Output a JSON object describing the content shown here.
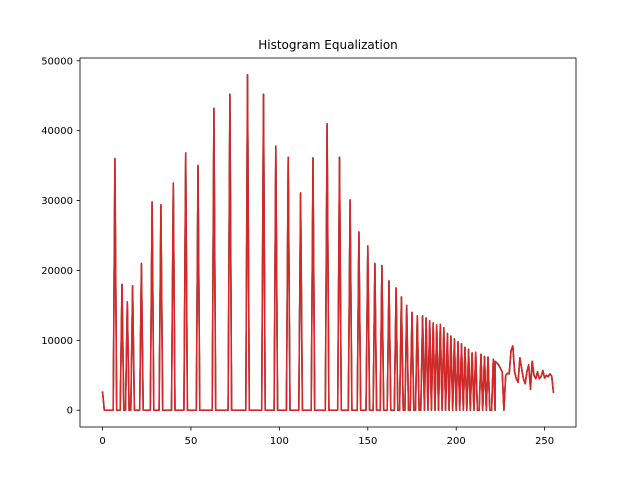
{
  "chart_data": {
    "type": "line",
    "title": "Histogram Equalization",
    "xlabel": "",
    "ylabel": "",
    "xlim": [
      -12.75,
      267.75
    ],
    "ylim": [
      -2400,
      50400
    ],
    "xticks": [
      0,
      50,
      100,
      150,
      200,
      250
    ],
    "yticks": [
      0,
      10000,
      20000,
      30000,
      40000,
      50000
    ],
    "grid": false,
    "series": [
      {
        "color": "#d62728",
        "overlay_colors": [
          "#1f77b4",
          "#2ca02c",
          "#8c564b"
        ],
        "peaks": [
          [
            7,
            36000
          ],
          [
            11,
            18000
          ],
          [
            14,
            15500
          ],
          [
            17,
            17800
          ],
          [
            22,
            21000
          ],
          [
            28,
            29800
          ],
          [
            33,
            29400
          ],
          [
            40,
            32500
          ],
          [
            47,
            36800
          ],
          [
            54,
            35000
          ],
          [
            63,
            43200
          ],
          [
            72,
            45200
          ],
          [
            82,
            48000
          ],
          [
            91,
            45200
          ],
          [
            98,
            37800
          ],
          [
            105,
            36200
          ],
          [
            112,
            31100
          ],
          [
            119,
            36100
          ],
          [
            127,
            41000
          ],
          [
            134,
            36200
          ],
          [
            140,
            30100
          ],
          [
            145,
            25500
          ],
          [
            150,
            23500
          ],
          [
            154,
            21000
          ],
          [
            158,
            20700
          ],
          [
            162,
            18500
          ],
          [
            166,
            17500
          ],
          [
            169,
            16200
          ],
          [
            172,
            15000
          ],
          [
            175,
            14000
          ],
          [
            178,
            13500
          ],
          [
            181,
            13500
          ],
          [
            183,
            13200
          ],
          [
            185,
            12800
          ],
          [
            187,
            12500
          ],
          [
            189,
            12200
          ],
          [
            191,
            12300
          ],
          [
            193,
            11800
          ],
          [
            195,
            11000
          ],
          [
            197,
            10600
          ],
          [
            199,
            10200
          ],
          [
            201,
            9800
          ],
          [
            203,
            9500
          ],
          [
            205,
            9000
          ],
          [
            207,
            8700
          ],
          [
            209,
            8200
          ],
          [
            211,
            8300
          ],
          [
            214,
            8000
          ],
          [
            216,
            7700
          ],
          [
            218,
            7600
          ],
          [
            221,
            7300
          ]
        ],
        "tail": [
          [
            222,
            7000
          ],
          [
            224,
            6500
          ],
          [
            226,
            5500
          ],
          [
            227,
            0
          ],
          [
            228,
            5000
          ],
          [
            229,
            5300
          ],
          [
            230,
            5200
          ],
          [
            231,
            8500
          ],
          [
            232,
            9200
          ],
          [
            233,
            5500
          ],
          [
            234,
            4500
          ],
          [
            235,
            4000
          ],
          [
            236,
            7500
          ],
          [
            237,
            6000
          ],
          [
            238,
            4500
          ],
          [
            239,
            3800
          ],
          [
            240,
            5500
          ],
          [
            241,
            6500
          ],
          [
            242,
            3000
          ],
          [
            243,
            7000
          ],
          [
            244,
            5000
          ],
          [
            245,
            4500
          ],
          [
            246,
            5500
          ],
          [
            247,
            4500
          ],
          [
            248,
            4800
          ],
          [
            249,
            5700
          ],
          [
            250,
            4600
          ],
          [
            251,
            5000
          ],
          [
            252,
            4800
          ],
          [
            253,
            5200
          ],
          [
            254,
            4900
          ],
          [
            255,
            2500
          ]
        ],
        "start": [
          [
            0,
            2700
          ],
          [
            1,
            0
          ]
        ]
      }
    ]
  }
}
